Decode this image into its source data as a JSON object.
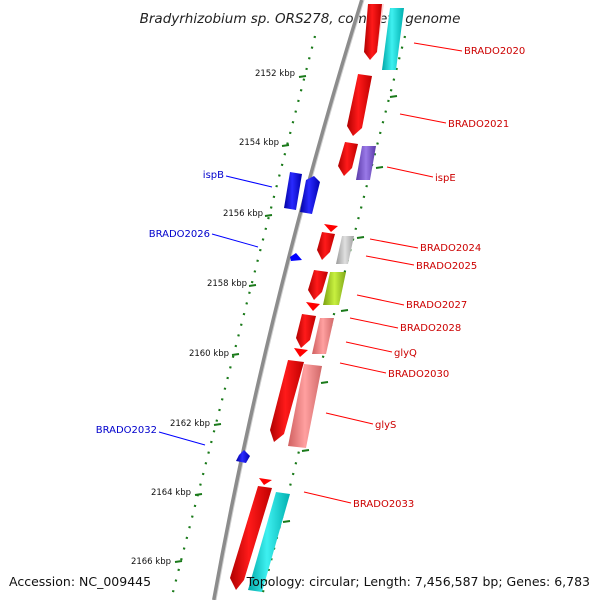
{
  "title": "Bradyrhizobium sp. ORS278, complete genome",
  "footer": {
    "accession": "Accession: NC_009445",
    "summary": "Topology: circular; Length: 7,456,587 bp; Genes: 6,783"
  },
  "ticks": [
    {
      "label": "2152 kbp"
    },
    {
      "label": "2154 kbp"
    },
    {
      "label": "2156 kbp"
    },
    {
      "label": "2158 kbp"
    },
    {
      "label": "2160 kbp"
    },
    {
      "label": "2162 kbp"
    },
    {
      "label": "2164 kbp"
    },
    {
      "label": "2166 kbp"
    }
  ],
  "genes_forward": [
    {
      "name": "BRADO2020",
      "color": "#ff0000"
    },
    {
      "name": "BRADO2021",
      "color": "#ff0000"
    },
    {
      "name": "ispE",
      "color": "#ff0000"
    },
    {
      "name": "BRADO2024",
      "color": "#ff0000"
    },
    {
      "name": "BRADO2025",
      "color": "#ff0000"
    },
    {
      "name": "BRADO2027",
      "color": "#ff0000"
    },
    {
      "name": "BRADO2028",
      "color": "#ff0000"
    },
    {
      "name": "glyQ",
      "color": "#ff0000"
    },
    {
      "name": "BRADO2030",
      "color": "#ff0000"
    },
    {
      "name": "glyS",
      "color": "#ff0000"
    },
    {
      "name": "BRADO2033",
      "color": "#ff0000"
    }
  ],
  "genes_reverse": [
    {
      "name": "ispB",
      "color": "#0000ff"
    },
    {
      "name": "BRADO2026",
      "color": "#0000ff"
    },
    {
      "name": "BRADO2032",
      "color": "#0000ff"
    }
  ],
  "colors": {
    "backbone": "#8c8c8c",
    "cds_forward": "#ff0000",
    "cds_reverse": "#0000ff",
    "gc_skew": "#1a7a1a",
    "cog_cyan": "#00e0e0",
    "cog_purple": "#7a5ad0",
    "cog_gray": "#bdbdbd",
    "cog_green": "#a6d620",
    "cog_salmon": "#f08080"
  }
}
